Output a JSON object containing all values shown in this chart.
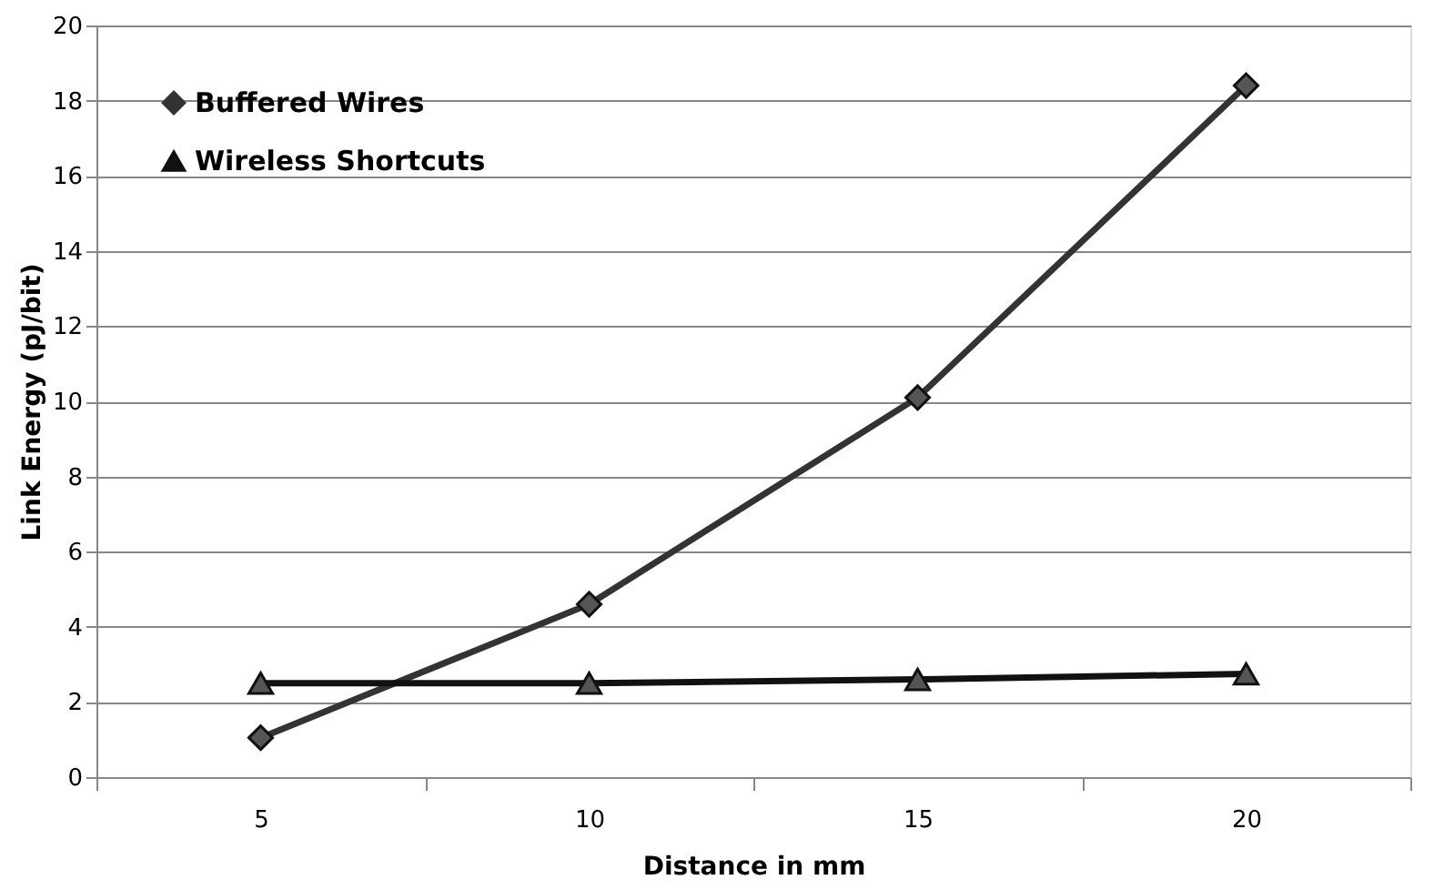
{
  "chart_data": {
    "type": "line",
    "xlabel": "Distance in mm",
    "ylabel": "Link Energy (pJ/bit)",
    "categories": [
      "5",
      "10",
      "15",
      "20"
    ],
    "series": [
      {
        "name": "Buffered Wires",
        "color": "#333333",
        "marker": "diamond",
        "values": [
          1.05,
          4.6,
          10.1,
          18.4
        ]
      },
      {
        "name": "Wireless Shortcuts",
        "color": "#111111",
        "marker": "triangle",
        "values": [
          2.5,
          2.5,
          2.6,
          2.75
        ]
      }
    ],
    "ylim": [
      0,
      20
    ],
    "yticks": [
      0,
      2,
      4,
      6,
      8,
      10,
      12,
      14,
      16,
      18,
      20
    ],
    "grid": "y",
    "legend": "top left"
  }
}
